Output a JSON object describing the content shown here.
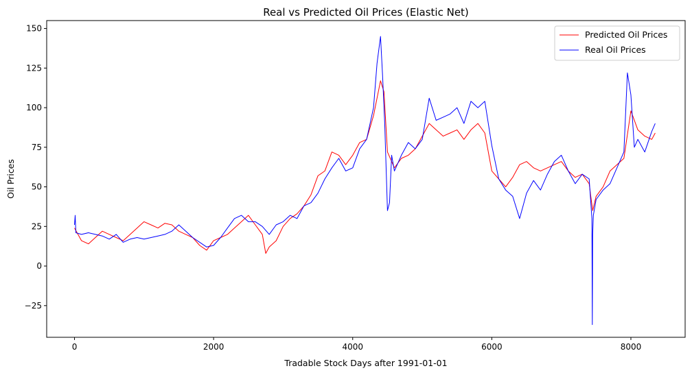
{
  "chart_data": {
    "type": "line",
    "title": "Real vs Predicted Oil Prices (Elastic Net)",
    "xlabel": "Tradable Stock Days after 1991-01-01",
    "ylabel": "Oil Prices",
    "xlim": [
      -400,
      8780
    ],
    "ylim": [
      -45,
      155
    ],
    "xticks": [
      0,
      2000,
      4000,
      6000,
      8000
    ],
    "yticks": [
      -25,
      0,
      25,
      50,
      75,
      100,
      125,
      150
    ],
    "grid": false,
    "legend_position": "top-right",
    "series": [
      {
        "name": "Predicted Oil Prices",
        "color": "#ff0000",
        "x": [
          0,
          100,
          200,
          300,
          400,
          500,
          600,
          700,
          800,
          900,
          1000,
          1100,
          1200,
          1300,
          1400,
          1500,
          1600,
          1700,
          1800,
          1900,
          2000,
          2100,
          2200,
          2300,
          2400,
          2500,
          2600,
          2700,
          2750,
          2800,
          2900,
          3000,
          3100,
          3200,
          3300,
          3400,
          3500,
          3600,
          3700,
          3800,
          3900,
          4000,
          4100,
          4200,
          4300,
          4400,
          4450,
          4500,
          4600,
          4700,
          4800,
          4900,
          5000,
          5100,
          5200,
          5300,
          5400,
          5500,
          5600,
          5700,
          5800,
          5900,
          6000,
          6100,
          6200,
          6300,
          6400,
          6500,
          6600,
          6700,
          6800,
          6900,
          7000,
          7100,
          7200,
          7300,
          7400,
          7450,
          7500,
          7600,
          7700,
          7800,
          7900,
          8000,
          8100,
          8200,
          8300,
          8350
        ],
        "values": [
          24,
          16,
          14,
          18,
          22,
          20,
          18,
          16,
          20,
          24,
          28,
          26,
          24,
          27,
          26,
          22,
          20,
          18,
          13,
          10,
          16,
          18,
          20,
          24,
          28,
          32,
          26,
          20,
          8,
          12,
          16,
          25,
          30,
          33,
          38,
          45,
          57,
          60,
          72,
          70,
          64,
          70,
          78,
          80,
          95,
          117,
          110,
          72,
          62,
          68,
          70,
          74,
          82,
          90,
          86,
          82,
          84,
          86,
          80,
          86,
          90,
          84,
          60,
          55,
          50,
          56,
          64,
          66,
          62,
          60,
          62,
          64,
          66,
          60,
          56,
          58,
          52,
          35,
          44,
          50,
          60,
          64,
          68,
          98,
          86,
          82,
          80,
          84
        ]
      },
      {
        "name": "Real Oil Prices",
        "color": "#0000ff",
        "x": [
          0,
          10,
          20,
          100,
          200,
          300,
          400,
          500,
          600,
          700,
          800,
          900,
          1000,
          1100,
          1200,
          1300,
          1400,
          1500,
          1600,
          1700,
          1800,
          1900,
          2000,
          2100,
          2200,
          2300,
          2400,
          2500,
          2600,
          2700,
          2800,
          2900,
          3000,
          3100,
          3200,
          3300,
          3400,
          3500,
          3600,
          3700,
          3800,
          3900,
          4000,
          4100,
          4200,
          4300,
          4350,
          4400,
          4430,
          4460,
          4500,
          4530,
          4560,
          4600,
          4700,
          4800,
          4900,
          5000,
          5100,
          5200,
          5300,
          5400,
          5500,
          5600,
          5700,
          5800,
          5900,
          6000,
          6100,
          6200,
          6300,
          6400,
          6500,
          6600,
          6700,
          6800,
          6900,
          7000,
          7100,
          7200,
          7300,
          7400,
          7440,
          7445,
          7450,
          7460,
          7500,
          7600,
          7700,
          7800,
          7900,
          7950,
          8000,
          8050,
          8100,
          8200,
          8300,
          8350
        ],
        "values": [
          26,
          32,
          21,
          20,
          21,
          20,
          19,
          17,
          20,
          15,
          17,
          18,
          17,
          18,
          19,
          20,
          22,
          26,
          22,
          18,
          15,
          12,
          13,
          18,
          24,
          30,
          32,
          28,
          28,
          25,
          20,
          26,
          28,
          32,
          30,
          38,
          40,
          46,
          55,
          62,
          68,
          60,
          62,
          74,
          80,
          100,
          128,
          145,
          120,
          90,
          35,
          40,
          70,
          60,
          70,
          78,
          74,
          80,
          106,
          92,
          94,
          96,
          100,
          90,
          104,
          100,
          104,
          76,
          55,
          48,
          44,
          30,
          46,
          54,
          48,
          58,
          66,
          70,
          60,
          52,
          58,
          55,
          30,
          -37,
          20,
          32,
          42,
          48,
          52,
          62,
          72,
          122,
          108,
          75,
          80,
          72,
          85,
          90
        ]
      }
    ]
  }
}
